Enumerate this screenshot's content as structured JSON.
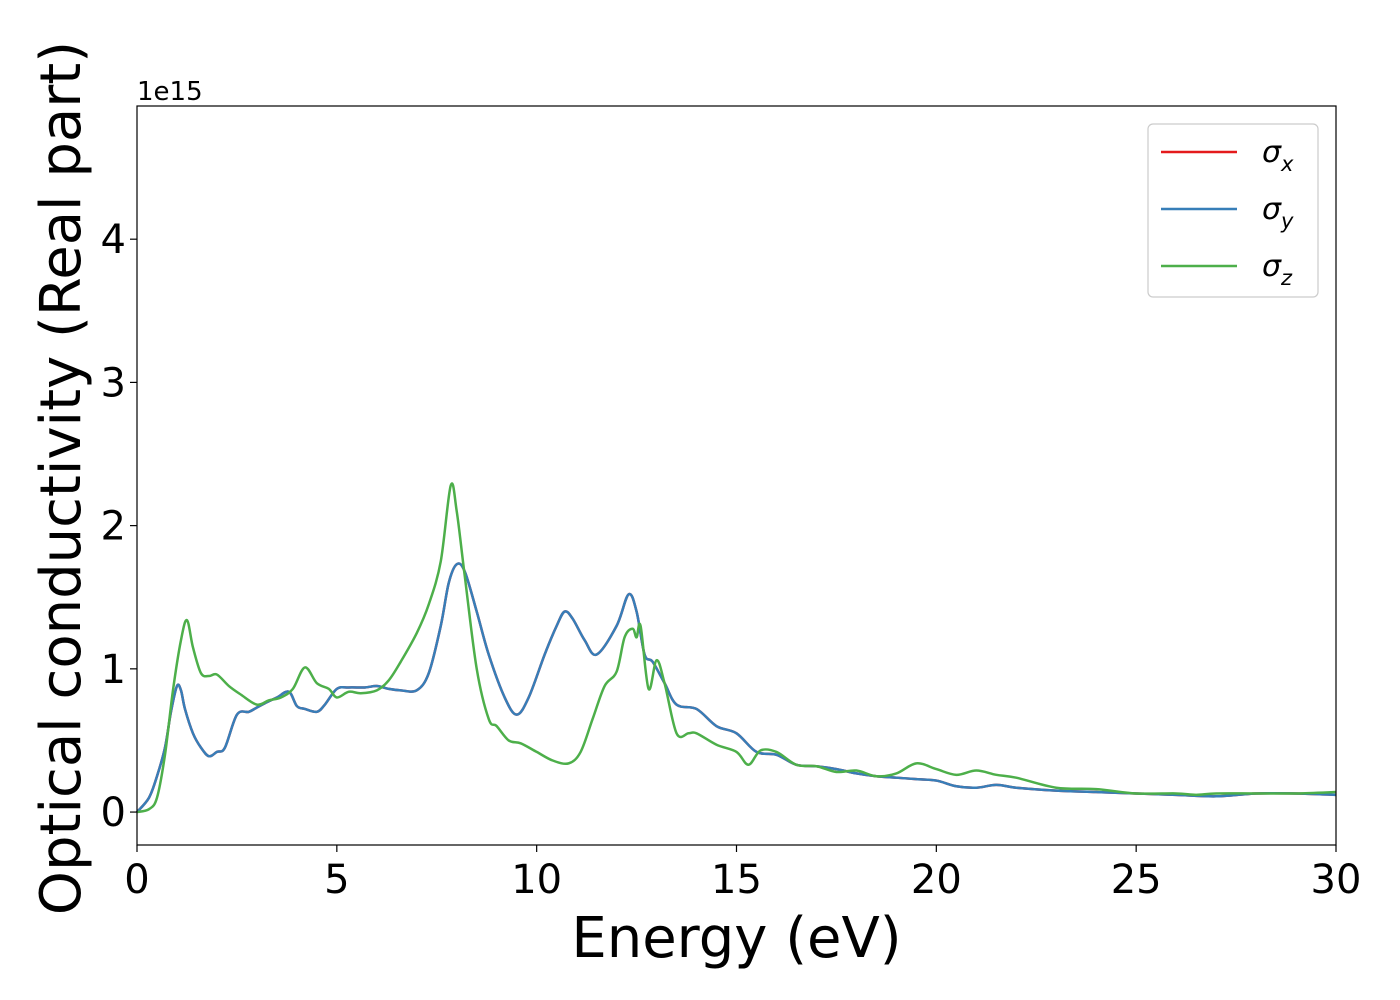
{
  "chart_data": {
    "type": "line",
    "xlabel": "Energy (eV)",
    "ylabel": "Optical conductivity (Real part)",
    "y_offset_label": "1e15",
    "y_scale": 1000000000000000.0,
    "xlim": [
      0,
      30
    ],
    "ylim": [
      -0.23,
      4.93
    ],
    "xticks": [
      0,
      5,
      10,
      15,
      20,
      25,
      30
    ],
    "yticks": [
      0,
      1,
      2,
      3,
      4
    ],
    "grid": false,
    "legend_position": "top-right",
    "series": [
      {
        "name": "σx",
        "legend_main": "σ",
        "legend_sub": "x",
        "color": "#e41a1c",
        "x": [
          0,
          0.3,
          0.5,
          0.7,
          0.85,
          1.0,
          1.1,
          1.2,
          1.4,
          1.6,
          1.8,
          2.0,
          2.2,
          2.5,
          2.8,
          3.0,
          3.2,
          3.5,
          3.8,
          4.0,
          4.2,
          4.5,
          4.7,
          5.0,
          5.3,
          5.7,
          6.0,
          6.3,
          6.6,
          7.0,
          7.3,
          7.6,
          7.8,
          8.0,
          8.2,
          8.5,
          8.8,
          9.2,
          9.5,
          9.8,
          10.2,
          10.5,
          10.7,
          10.9,
          11.2,
          11.5,
          12.0,
          12.3,
          12.5,
          12.7,
          12.9,
          13.2,
          13.5,
          14.0,
          14.5,
          15.0,
          15.5,
          16.0,
          16.5,
          17.0,
          17.5,
          18.0,
          18.5,
          19.0,
          19.5,
          20.0,
          20.5,
          21.0,
          21.5,
          22.0,
          23.0,
          24.0,
          25.0,
          26.0,
          27.0,
          28.0,
          29.0,
          30.0
        ],
        "y": [
          0.0,
          0.1,
          0.25,
          0.45,
          0.7,
          0.88,
          0.85,
          0.72,
          0.55,
          0.45,
          0.39,
          0.42,
          0.45,
          0.68,
          0.7,
          0.73,
          0.76,
          0.8,
          0.84,
          0.74,
          0.72,
          0.7,
          0.75,
          0.86,
          0.87,
          0.87,
          0.88,
          0.86,
          0.85,
          0.85,
          0.97,
          1.3,
          1.6,
          1.73,
          1.68,
          1.4,
          1.1,
          0.8,
          0.68,
          0.8,
          1.1,
          1.3,
          1.4,
          1.35,
          1.2,
          1.1,
          1.3,
          1.52,
          1.4,
          1.1,
          1.05,
          0.9,
          0.75,
          0.72,
          0.6,
          0.55,
          0.42,
          0.4,
          0.33,
          0.32,
          0.3,
          0.27,
          0.25,
          0.24,
          0.23,
          0.22,
          0.18,
          0.17,
          0.19,
          0.17,
          0.15,
          0.14,
          0.13,
          0.12,
          0.11,
          0.13,
          0.13,
          0.12
        ]
      },
      {
        "name": "σy",
        "legend_main": "σ",
        "legend_sub": "y",
        "color": "#377eb8",
        "x": [
          0,
          0.3,
          0.5,
          0.7,
          0.85,
          1.0,
          1.1,
          1.2,
          1.4,
          1.6,
          1.8,
          2.0,
          2.2,
          2.5,
          2.8,
          3.0,
          3.2,
          3.5,
          3.8,
          4.0,
          4.2,
          4.5,
          4.7,
          5.0,
          5.3,
          5.7,
          6.0,
          6.3,
          6.6,
          7.0,
          7.3,
          7.6,
          7.8,
          8.0,
          8.2,
          8.5,
          8.8,
          9.2,
          9.5,
          9.8,
          10.2,
          10.5,
          10.7,
          10.9,
          11.2,
          11.5,
          12.0,
          12.3,
          12.5,
          12.7,
          12.9,
          13.2,
          13.5,
          14.0,
          14.5,
          15.0,
          15.5,
          16.0,
          16.5,
          17.0,
          17.5,
          18.0,
          18.5,
          19.0,
          19.5,
          20.0,
          20.5,
          21.0,
          21.5,
          22.0,
          23.0,
          24.0,
          25.0,
          26.0,
          27.0,
          28.0,
          29.0,
          30.0
        ],
        "y": [
          0.0,
          0.1,
          0.25,
          0.45,
          0.7,
          0.88,
          0.85,
          0.72,
          0.55,
          0.45,
          0.39,
          0.42,
          0.45,
          0.68,
          0.7,
          0.73,
          0.76,
          0.8,
          0.84,
          0.74,
          0.72,
          0.7,
          0.75,
          0.86,
          0.87,
          0.87,
          0.88,
          0.86,
          0.85,
          0.85,
          0.97,
          1.3,
          1.6,
          1.73,
          1.68,
          1.4,
          1.1,
          0.8,
          0.68,
          0.8,
          1.1,
          1.3,
          1.4,
          1.35,
          1.2,
          1.1,
          1.3,
          1.52,
          1.4,
          1.1,
          1.05,
          0.9,
          0.75,
          0.72,
          0.6,
          0.55,
          0.42,
          0.4,
          0.33,
          0.32,
          0.3,
          0.27,
          0.25,
          0.24,
          0.23,
          0.22,
          0.18,
          0.17,
          0.19,
          0.17,
          0.15,
          0.14,
          0.13,
          0.12,
          0.11,
          0.13,
          0.13,
          0.12
        ]
      },
      {
        "name": "σz",
        "legend_main": "σ",
        "legend_sub": "z",
        "color": "#4daf4a",
        "x": [
          0,
          0.3,
          0.5,
          0.7,
          0.9,
          1.1,
          1.25,
          1.4,
          1.6,
          1.8,
          2.0,
          2.3,
          2.6,
          3.0,
          3.3,
          3.6,
          3.9,
          4.2,
          4.5,
          4.8,
          5.0,
          5.3,
          5.6,
          6.0,
          6.3,
          6.6,
          7.0,
          7.3,
          7.6,
          7.85,
          8.0,
          8.2,
          8.5,
          8.8,
          9.0,
          9.3,
          9.6,
          10.0,
          10.4,
          10.8,
          11.1,
          11.4,
          11.7,
          12.0,
          12.2,
          12.4,
          12.5,
          12.6,
          12.8,
          13.0,
          13.2,
          13.5,
          13.8,
          14.0,
          14.5,
          15.0,
          15.3,
          15.6,
          16.0,
          16.5,
          17.0,
          17.5,
          18.0,
          18.5,
          19.0,
          19.5,
          20.0,
          20.5,
          21.0,
          21.5,
          22.0,
          23.0,
          24.0,
          25.0,
          26.0,
          26.5,
          27.0,
          28.0,
          29.0,
          30.0
        ],
        "y": [
          0.0,
          0.02,
          0.1,
          0.4,
          0.85,
          1.2,
          1.34,
          1.15,
          0.97,
          0.95,
          0.96,
          0.88,
          0.82,
          0.75,
          0.78,
          0.8,
          0.86,
          1.01,
          0.9,
          0.86,
          0.8,
          0.84,
          0.83,
          0.85,
          0.92,
          1.05,
          1.25,
          1.45,
          1.75,
          2.28,
          2.1,
          1.65,
          1.0,
          0.65,
          0.6,
          0.5,
          0.48,
          0.42,
          0.36,
          0.34,
          0.42,
          0.65,
          0.88,
          0.98,
          1.22,
          1.28,
          1.22,
          1.3,
          0.86,
          1.06,
          0.9,
          0.55,
          0.55,
          0.55,
          0.47,
          0.42,
          0.33,
          0.43,
          0.42,
          0.33,
          0.32,
          0.28,
          0.29,
          0.25,
          0.27,
          0.34,
          0.3,
          0.26,
          0.29,
          0.26,
          0.24,
          0.17,
          0.16,
          0.13,
          0.13,
          0.12,
          0.13,
          0.13,
          0.13,
          0.14
        ]
      }
    ]
  }
}
